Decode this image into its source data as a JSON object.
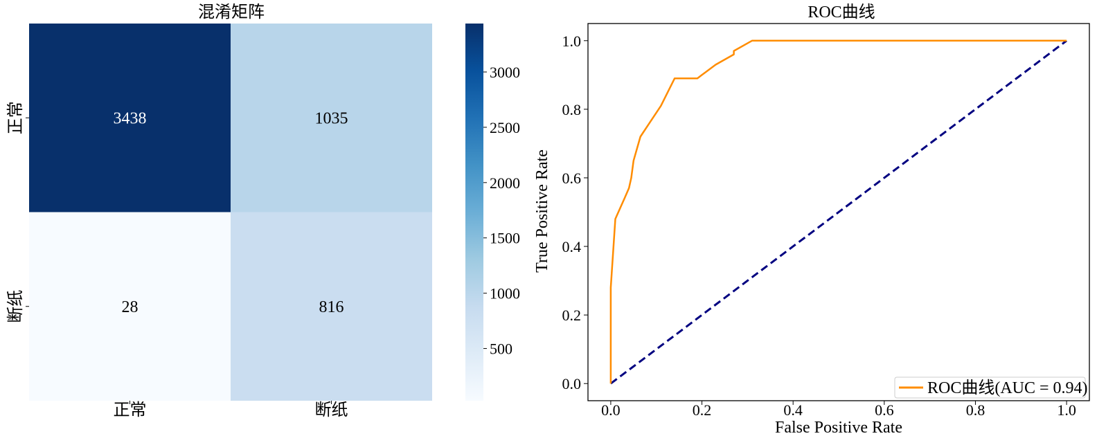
{
  "chart_data": [
    {
      "type": "heatmap",
      "title": "混淆矩阵",
      "row_labels": [
        "正常",
        "断纸"
      ],
      "col_labels": [
        "正常",
        "断纸"
      ],
      "values": [
        [
          3438,
          1035
        ],
        [
          28,
          816
        ]
      ],
      "colormap": "Blues",
      "colorbar": {
        "range": [
          28,
          3438
        ],
        "ticks": [
          500,
          1000,
          1500,
          2000,
          2500,
          3000
        ],
        "tick_labels": [
          "500",
          "1000",
          "1500",
          "2000",
          "2500",
          "3000"
        ]
      },
      "colors": {
        "low": "#f7fbff",
        "high": "#08306b"
      }
    },
    {
      "type": "line",
      "title": "ROC曲线",
      "xlabel": "False Positive Rate",
      "ylabel": "True Positive Rate",
      "xlim": [
        -0.05,
        1.05
      ],
      "ylim": [
        -0.05,
        1.05
      ],
      "xticks": [
        0.0,
        0.2,
        0.4,
        0.6,
        0.8,
        1.0
      ],
      "xtick_labels": [
        "0.0",
        "0.2",
        "0.4",
        "0.6",
        "0.8",
        "1.0"
      ],
      "yticks": [
        0.0,
        0.2,
        0.4,
        0.6,
        0.8,
        1.0
      ],
      "ytick_labels": [
        "0.0",
        "0.2",
        "0.4",
        "0.6",
        "0.8",
        "1.0"
      ],
      "legend_position": "lower-right",
      "series": [
        {
          "name": "ROC曲线(AUC = 0.94)",
          "color": "#ff8c00",
          "style": "solid",
          "x": [
            0.0,
            0.0,
            0.0,
            0.005,
            0.01,
            0.02,
            0.03,
            0.04,
            0.045,
            0.05,
            0.065,
            0.07,
            0.08,
            0.11,
            0.14,
            0.19,
            0.2,
            0.23,
            0.27,
            0.27,
            0.31,
            1.0
          ],
          "y": [
            0.0,
            0.1,
            0.28,
            0.38,
            0.48,
            0.51,
            0.54,
            0.57,
            0.6,
            0.65,
            0.72,
            0.73,
            0.75,
            0.81,
            0.89,
            0.89,
            0.9,
            0.93,
            0.96,
            0.97,
            1.0,
            1.0
          ]
        },
        {
          "name": "diagonal",
          "color": "#000080",
          "style": "dashed",
          "x": [
            0.0,
            1.0
          ],
          "y": [
            0.0,
            1.0
          ]
        }
      ],
      "legend": {
        "label": "ROC曲线(AUC = 0.94)"
      }
    }
  ]
}
